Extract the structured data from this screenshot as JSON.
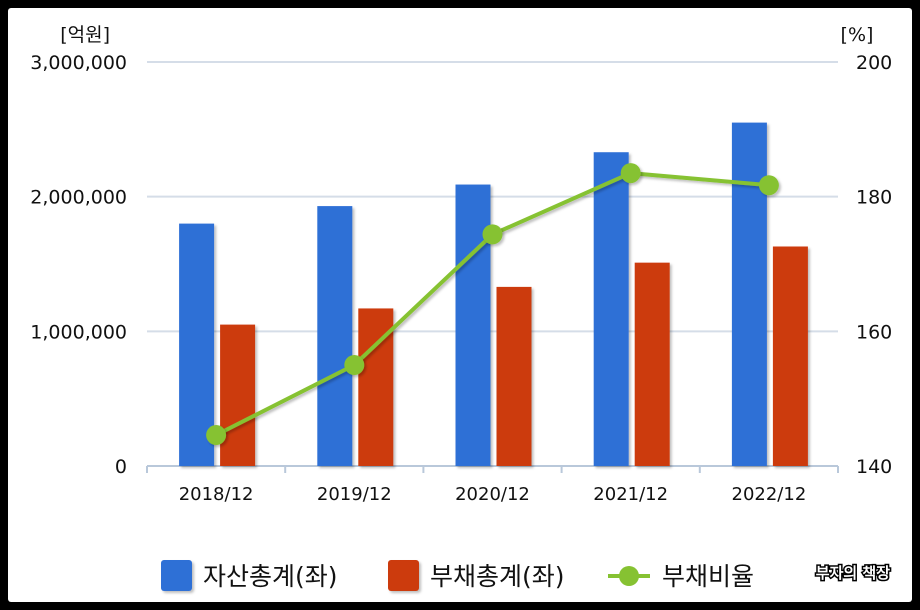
{
  "chart_data": {
    "type": "bar",
    "categories": [
      "2018/12",
      "2019/12",
      "2020/12",
      "2021/12",
      "2022/12"
    ],
    "series": [
      {
        "name": "자산총계(좌)",
        "kind": "bar",
        "axis": "left",
        "color": "#2f6fd6",
        "values": [
          1800000,
          1930000,
          2090000,
          2330000,
          2550000
        ]
      },
      {
        "name": "부채총계(좌)",
        "kind": "bar",
        "axis": "left",
        "color": "#cc3a0c",
        "values": [
          1050000,
          1170000,
          1330000,
          1510000,
          1630000
        ]
      },
      {
        "name": "부채비율",
        "kind": "line",
        "axis": "right",
        "color": "#86c232",
        "values": [
          144.6,
          155.0,
          174.4,
          183.5,
          181.7
        ]
      }
    ],
    "y_left": {
      "unit": "[억원]",
      "ylim": [
        0,
        3000000
      ],
      "ticks": [
        "0",
        "1,000,000",
        "2,000,000",
        "3,000,000"
      ],
      "tick_values": [
        0,
        1000000,
        2000000,
        3000000
      ]
    },
    "y_right": {
      "unit": "[%]",
      "ylim": [
        140,
        200
      ],
      "ticks": [
        "140",
        "160",
        "180",
        "200"
      ],
      "tick_values": [
        140,
        160,
        180,
        200
      ]
    },
    "grid": true,
    "legend_position": "bottom"
  },
  "watermark": "부자의 책장"
}
